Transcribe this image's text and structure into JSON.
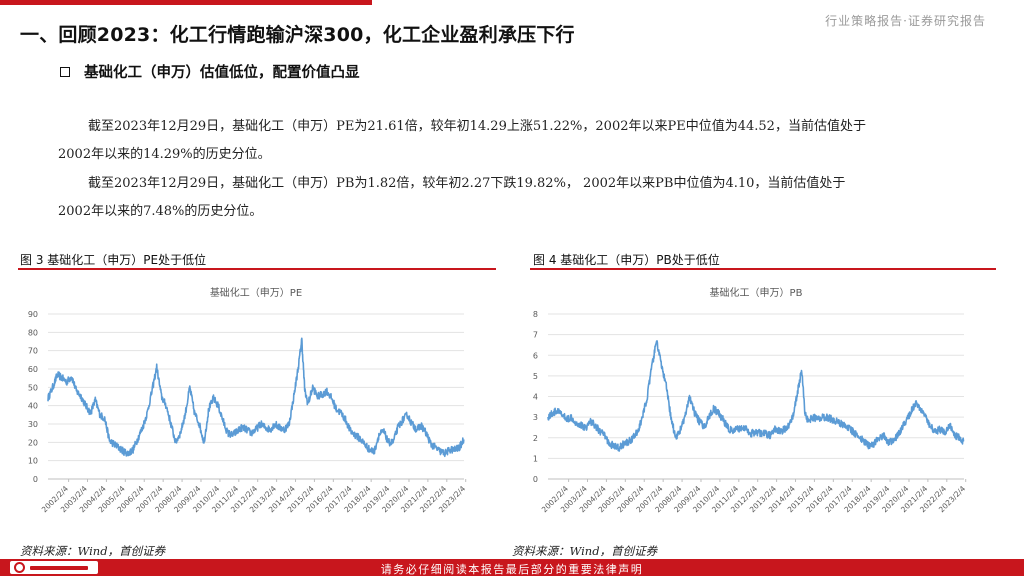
{
  "header": {
    "right_label": "行业策略报告·证券研究报告"
  },
  "title": "一、回顾2023：化工行情跑输沪深300，化工企业盈利承压下行",
  "subtitle": "基础化工（申万）估值低位，配置价值凸显",
  "paragraphs": [
    {
      "line1": "截至2023年12月29日，基础化工（申万）PE为21.61倍，较年初14.29上涨51.22%，2002年以来PE中位值为44.52，当前估值处于",
      "line2": "2002年以来的14.29%的历史分位。"
    },
    {
      "line1": "截至2023年12月29日，基础化工（申万）PB为1.82倍，较年初2.27下跌19.82%，  2002年以来PB中位值为4.10，当前估值处于",
      "line2": "2002年以来的7.48%的历史分位。"
    }
  ],
  "figures": [
    {
      "label": "图 3 基础化工（申万）PE处于低位",
      "source": "资料来源：Wind，首创证券"
    },
    {
      "label": "图 4 基础化工（申万）PB处于低位",
      "source": "资料来源：Wind，首创证券"
    }
  ],
  "footer": {
    "notice": "请务必仔细阅读本报告最后部分的重要法律声明"
  },
  "colors": {
    "accent_red": "#c8161d",
    "series_blue": "#5b9bd5"
  },
  "chart_data": [
    {
      "type": "line",
      "title": "基础化工（申万）PE",
      "x_ticks": [
        "2002/2/4",
        "2003/2/4",
        "2004/2/4",
        "2005/2/4",
        "2006/2/4",
        "2007/2/4",
        "2008/2/4",
        "2009/2/4",
        "2010/2/4",
        "2011/2/4",
        "2012/2/4",
        "2013/2/4",
        "2014/2/4",
        "2015/2/4",
        "2016/2/4",
        "2017/2/4",
        "2018/2/4",
        "2019/2/4",
        "2020/2/4",
        "2021/2/4",
        "2022/2/4",
        "2023/2/4"
      ],
      "x_range": [
        2002.0,
        2024.0
      ],
      "ylim": [
        0,
        90
      ],
      "y_ticks": [
        0,
        10,
        20,
        30,
        40,
        50,
        60,
        70,
        80,
        90
      ],
      "grid": true,
      "series": [
        {
          "x": [
            2002.0,
            2002.25,
            2002.5,
            2002.75,
            2003.0,
            2003.25,
            2003.5,
            2003.75,
            2004.0,
            2004.25,
            2004.5,
            2004.75,
            2005.0,
            2005.25,
            2005.5,
            2005.75,
            2006.0,
            2006.25,
            2006.5,
            2006.75,
            2007.0,
            2007.25,
            2007.5,
            2007.75,
            2008.0,
            2008.25,
            2008.5,
            2008.75,
            2009.0,
            2009.25,
            2009.5,
            2009.75,
            2010.0,
            2010.25,
            2010.5,
            2010.75,
            2011.0,
            2011.25,
            2011.5,
            2011.75,
            2012.0,
            2012.25,
            2012.5,
            2012.75,
            2013.0,
            2013.25,
            2013.5,
            2013.75,
            2014.0,
            2014.25,
            2014.5,
            2014.75,
            2015.0,
            2015.25,
            2015.42,
            2015.58,
            2015.75,
            2016.0,
            2016.25,
            2016.5,
            2016.75,
            2017.0,
            2017.25,
            2017.5,
            2017.75,
            2018.0,
            2018.25,
            2018.5,
            2018.75,
            2019.0,
            2019.25,
            2019.5,
            2019.75,
            2020.0,
            2020.25,
            2020.5,
            2020.75,
            2021.0,
            2021.25,
            2021.5,
            2021.75,
            2022.0,
            2022.25,
            2022.5,
            2022.75,
            2023.0,
            2023.25,
            2023.5,
            2023.75,
            2023.99
          ],
          "y": [
            44,
            50,
            57,
            55,
            53,
            56,
            48,
            45,
            40,
            36,
            43,
            35,
            33,
            21,
            19,
            17,
            15,
            14,
            16,
            22,
            28,
            36,
            48,
            61,
            45,
            40,
            30,
            20,
            25,
            35,
            50,
            36,
            30,
            20,
            38,
            44,
            40,
            32,
            25,
            24,
            26,
            28,
            27,
            25,
            27,
            30,
            28,
            27,
            30,
            28,
            27,
            30,
            45,
            62,
            76,
            48,
            41,
            50,
            45,
            46,
            48,
            44,
            38,
            36,
            32,
            26,
            24,
            22,
            19,
            16,
            15,
            24,
            26,
            20,
            20,
            28,
            32,
            35,
            30,
            27,
            29,
            25,
            19,
            17,
            15,
            14,
            16,
            16,
            17,
            21.61
          ]
        }
      ]
    },
    {
      "type": "line",
      "title": "基础化工（申万）PB",
      "x_ticks": [
        "2002/2/4",
        "2003/2/4",
        "2004/2/4",
        "2005/2/4",
        "2006/2/4",
        "2007/2/4",
        "2008/2/4",
        "2009/2/4",
        "2010/2/4",
        "2011/2/4",
        "2012/2/4",
        "2013/2/4",
        "2014/2/4",
        "2015/2/4",
        "2016/2/4",
        "2017/2/4",
        "2018/2/4",
        "2019/2/4",
        "2020/2/4",
        "2021/2/4",
        "2022/2/4",
        "2023/2/4"
      ],
      "x_range": [
        2002.0,
        2024.0
      ],
      "ylim": [
        0,
        8
      ],
      "y_ticks": [
        0,
        1,
        2,
        3,
        4,
        5,
        6,
        7,
        8
      ],
      "grid": true,
      "series": [
        {
          "x": [
            2002.0,
            2002.25,
            2002.5,
            2002.75,
            2003.0,
            2003.25,
            2003.5,
            2003.75,
            2004.0,
            2004.25,
            2004.5,
            2004.75,
            2005.0,
            2005.25,
            2005.5,
            2005.75,
            2006.0,
            2006.25,
            2006.5,
            2006.75,
            2007.0,
            2007.25,
            2007.5,
            2007.75,
            2008.0,
            2008.25,
            2008.5,
            2008.75,
            2009.0,
            2009.25,
            2009.5,
            2009.75,
            2010.0,
            2010.25,
            2010.5,
            2010.75,
            2011.0,
            2011.25,
            2011.5,
            2011.75,
            2012.0,
            2012.25,
            2012.5,
            2012.75,
            2013.0,
            2013.25,
            2013.5,
            2013.75,
            2014.0,
            2014.25,
            2014.5,
            2014.75,
            2015.0,
            2015.25,
            2015.42,
            2015.58,
            2015.75,
            2016.0,
            2016.25,
            2016.5,
            2016.75,
            2017.0,
            2017.25,
            2017.5,
            2017.75,
            2018.0,
            2018.25,
            2018.5,
            2018.75,
            2019.0,
            2019.25,
            2019.5,
            2019.75,
            2020.0,
            2020.25,
            2020.5,
            2020.75,
            2021.0,
            2021.25,
            2021.5,
            2021.75,
            2022.0,
            2022.25,
            2022.5,
            2022.75,
            2023.0,
            2023.25,
            2023.5,
            2023.75,
            2023.99
          ],
          "y": [
            3.0,
            3.2,
            3.3,
            3.1,
            2.9,
            3.0,
            2.7,
            2.6,
            2.5,
            2.8,
            2.6,
            2.3,
            2.1,
            1.7,
            1.6,
            1.5,
            1.7,
            1.8,
            2.0,
            2.3,
            3.0,
            4.0,
            5.5,
            6.7,
            5.5,
            4.5,
            3.0,
            2.0,
            2.4,
            3.0,
            4.0,
            3.2,
            2.8,
            2.5,
            3.0,
            3.4,
            3.2,
            2.9,
            2.5,
            2.3,
            2.4,
            2.5,
            2.4,
            2.2,
            2.3,
            2.2,
            2.2,
            2.1,
            2.4,
            2.3,
            2.4,
            2.6,
            3.2,
            4.5,
            5.3,
            3.3,
            2.8,
            3.0,
            2.9,
            3.0,
            3.0,
            2.9,
            2.8,
            2.7,
            2.6,
            2.4,
            2.2,
            2.0,
            1.8,
            1.6,
            1.7,
            2.0,
            2.1,
            1.8,
            1.8,
            2.1,
            2.5,
            2.9,
            3.4,
            3.7,
            3.3,
            3.0,
            2.5,
            2.3,
            2.4,
            2.27,
            2.6,
            2.1,
            2.0,
            1.82
          ]
        }
      ]
    }
  ]
}
